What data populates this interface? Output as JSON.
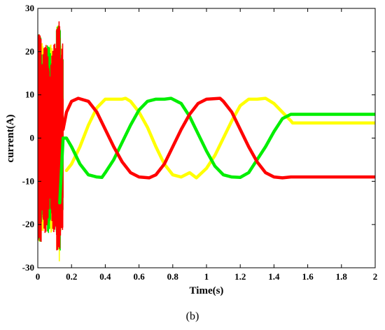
{
  "caption": "(b)",
  "chart_data": {
    "type": "line",
    "xlabel": "Time(s)",
    "ylabel": "current(A)",
    "xlim": [
      0,
      2
    ],
    "ylim": [
      -30,
      30
    ],
    "xticks": [
      0,
      0.2,
      0.4,
      0.6,
      0.8,
      1,
      1.2,
      1.4,
      1.6,
      1.8,
      2
    ],
    "xtick_labels": [
      "0",
      "0.2",
      "0.4",
      "0.6",
      "0.8",
      "1",
      "1.2",
      "1.4",
      "1.6",
      "1.8",
      "2"
    ],
    "yticks": [
      -30,
      -20,
      -10,
      0,
      10,
      20,
      30
    ],
    "ytick_labels": [
      "-30",
      "-20",
      "-10",
      "0",
      "10",
      "20",
      "30"
    ],
    "grid": false,
    "legend": false,
    "series": [
      {
        "color": "#ffff00",
        "x": [
          0.17,
          0.2,
          0.25,
          0.3,
          0.35,
          0.4,
          0.45,
          0.5,
          0.52,
          0.55,
          0.6,
          0.65,
          0.7,
          0.75,
          0.8,
          0.85,
          0.9,
          0.94,
          1.0,
          1.05,
          1.1,
          1.15,
          1.2,
          1.25,
          1.3,
          1.35,
          1.4,
          1.45,
          1.5,
          1.51,
          1.6,
          1.7,
          1.8,
          1.9,
          2.0
        ],
        "y": [
          -7.5,
          -6,
          -2,
          3,
          7,
          9,
          9,
          9,
          9.2,
          8.5,
          6,
          2.5,
          -2,
          -6,
          -8.5,
          -9,
          -8,
          -9.2,
          -7,
          -4,
          0,
          4,
          7.5,
          9,
          9,
          9.2,
          8,
          6,
          4,
          3.5,
          3.5,
          3.5,
          3.5,
          3.5,
          3.5
        ]
      },
      {
        "color": "#00ee00",
        "x": [
          0.13,
          0.15,
          0.17,
          0.2,
          0.25,
          0.3,
          0.35,
          0.38,
          0.4,
          0.45,
          0.5,
          0.55,
          0.6,
          0.65,
          0.7,
          0.75,
          0.79,
          0.85,
          0.9,
          0.95,
          1.0,
          1.05,
          1.1,
          1.15,
          1.2,
          1.25,
          1.3,
          1.35,
          1.4,
          1.45,
          1.5,
          1.51,
          1.6,
          1.7,
          1.8,
          1.9,
          2.0
        ],
        "y": [
          -15,
          0,
          0,
          -2,
          -6,
          -8.5,
          -9,
          -9.1,
          -8,
          -5,
          -1,
          3,
          6.5,
          8.5,
          9,
          9,
          9.2,
          8,
          5,
          1,
          -3,
          -6.5,
          -8.5,
          -9,
          -9.1,
          -8,
          -5,
          -2,
          1.5,
          4.5,
          5.5,
          5.5,
          5.5,
          5.5,
          5.5,
          5.5,
          5.5
        ]
      },
      {
        "color": "#ff0000",
        "x": [
          0.15,
          0.17,
          0.2,
          0.24,
          0.3,
          0.35,
          0.4,
          0.45,
          0.5,
          0.55,
          0.6,
          0.66,
          0.7,
          0.75,
          0.8,
          0.85,
          0.9,
          0.95,
          1.0,
          1.08,
          1.1,
          1.15,
          1.2,
          1.25,
          1.3,
          1.35,
          1.4,
          1.45,
          1.5,
          1.51,
          1.6,
          1.7,
          1.8,
          1.9,
          2.0
        ],
        "y": [
          2,
          6,
          8.5,
          9.2,
          8.5,
          6,
          2,
          -2,
          -5.5,
          -8,
          -9,
          -9.2,
          -8.5,
          -6,
          -2,
          2,
          5.5,
          8,
          9,
          9.2,
          8.5,
          6,
          2,
          -2,
          -5.5,
          -8,
          -9,
          -9.2,
          -9,
          -9,
          -9,
          -9,
          -9,
          -9,
          -9
        ]
      }
    ],
    "transient": {
      "x_start": 0.0,
      "x_end": 0.15,
      "peak_positive": 27,
      "peak_negative": -28.5,
      "colors": [
        "#ffff00",
        "#00ee00",
        "#ff0000"
      ]
    }
  }
}
